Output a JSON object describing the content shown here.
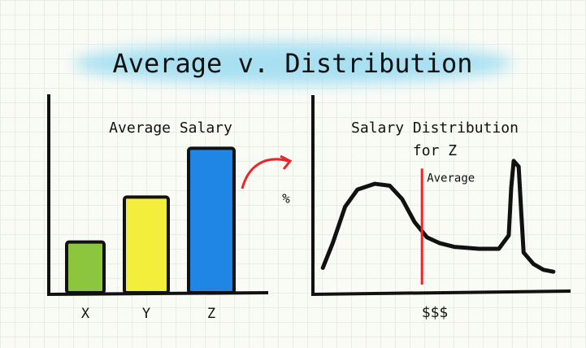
{
  "title": "Average v. Distribution",
  "chart_data": [
    {
      "type": "bar",
      "title": "Average Salary",
      "categories": [
        "X",
        "Y",
        "Z"
      ],
      "values": [
        26,
        49,
        74
      ],
      "colors": [
        "#8cc63e",
        "#f3ee3c",
        "#1f86e6"
      ],
      "ylim": [
        0,
        100
      ]
    },
    {
      "type": "line",
      "title": [
        "Salary Distribution",
        "for Z"
      ],
      "x_label": "$$$",
      "y_label": "%",
      "x": [
        4,
        8,
        13,
        18,
        25,
        31,
        36,
        41,
        46,
        51,
        57,
        67,
        75,
        79,
        80,
        81,
        83,
        84,
        85,
        89,
        93,
        97
      ],
      "values": [
        13,
        26,
        45,
        54,
        57,
        56,
        49,
        37,
        29,
        26,
        24,
        23,
        23,
        30,
        55,
        69,
        66,
        43,
        21,
        15,
        12,
        11
      ],
      "color": "#111111",
      "xlim": [
        0,
        100
      ],
      "ylim": [
        0,
        100
      ],
      "annotation": {
        "label": "Average",
        "x": 44,
        "top": 65,
        "color": "#e8262b"
      }
    }
  ]
}
